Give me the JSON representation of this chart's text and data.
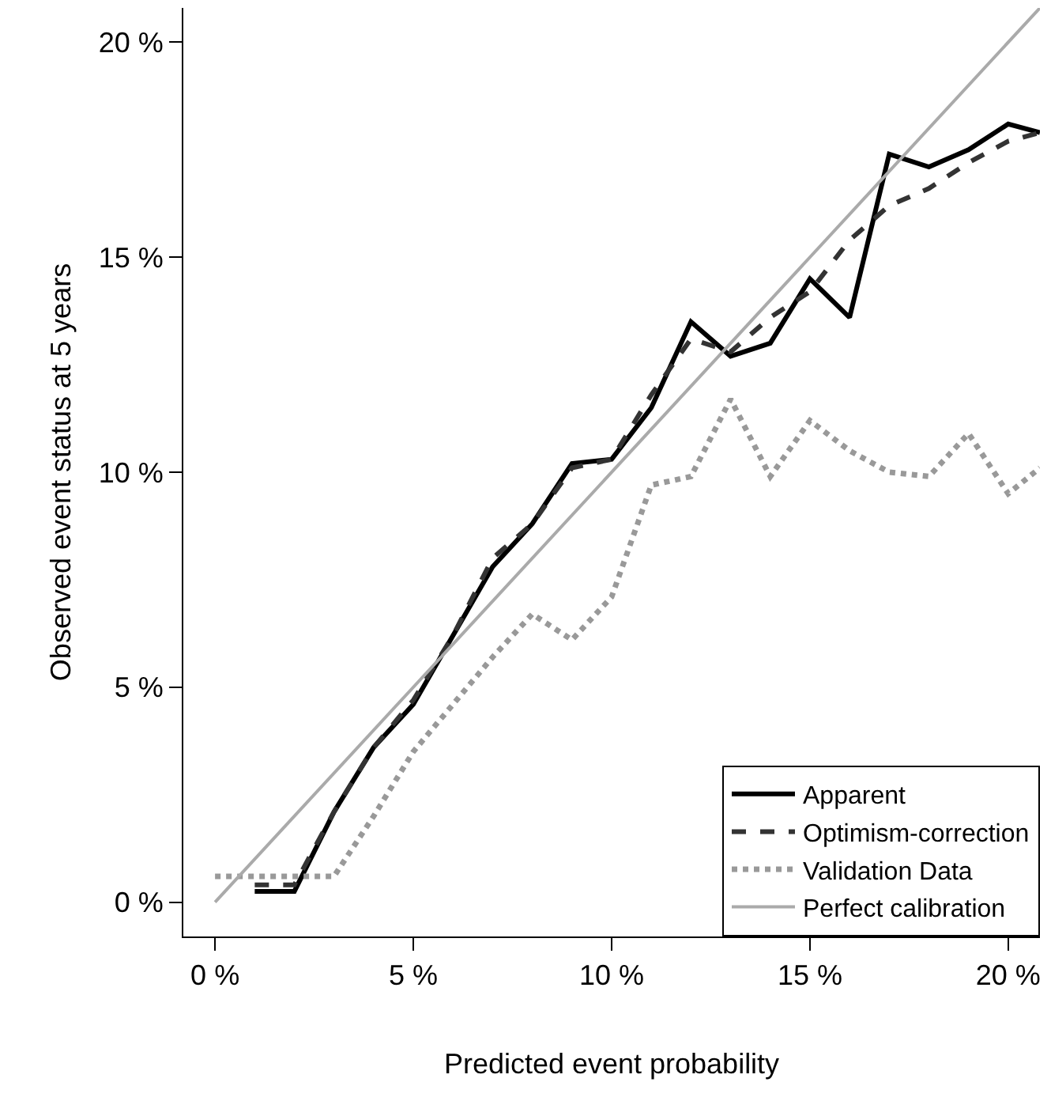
{
  "chart_data": {
    "type": "line",
    "xlabel": "Predicted event probability",
    "ylabel": "Observed event status at 5 years",
    "xlim": [
      -0.8,
      20.8
    ],
    "ylim": [
      -0.8,
      20.8
    ],
    "xticks": [
      {
        "value": 0,
        "label": "0 %"
      },
      {
        "value": 5,
        "label": "5 %"
      },
      {
        "value": 10,
        "label": "10 %"
      },
      {
        "value": 15,
        "label": "15 %"
      },
      {
        "value": 20,
        "label": "20 %"
      }
    ],
    "yticks": [
      {
        "value": 0,
        "label": "0 %"
      },
      {
        "value": 5,
        "label": "5 %"
      },
      {
        "value": 10,
        "label": "10 %"
      },
      {
        "value": 15,
        "label": "15 %"
      },
      {
        "value": 20,
        "label": "20 %"
      }
    ],
    "legend": "bottom right",
    "marker": "none",
    "series": [
      {
        "name": "Apparent",
        "color": "#000000",
        "line_style": "solid",
        "x": [
          1,
          2,
          3,
          4,
          5,
          6,
          7,
          8,
          9,
          10,
          11,
          12,
          13,
          14,
          15,
          16,
          17,
          18,
          19,
          20,
          20.8
        ],
        "values": [
          0.25,
          0.25,
          2.1,
          3.6,
          4.6,
          6.2,
          7.8,
          8.8,
          10.2,
          10.3,
          11.5,
          13.5,
          12.7,
          13.0,
          14.5,
          13.6,
          17.4,
          17.1,
          17.5,
          18.1,
          17.9
        ]
      },
      {
        "name": "Optimism-correction",
        "color": "#333333",
        "line_style": "dashed",
        "x": [
          1,
          2,
          3,
          4,
          5,
          6,
          7,
          8,
          9,
          10,
          11,
          12,
          13,
          14,
          15,
          16,
          17,
          18,
          19,
          20,
          20.8
        ],
        "values": [
          0.4,
          0.4,
          2.1,
          3.6,
          4.7,
          6.2,
          8.0,
          8.8,
          10.1,
          10.3,
          11.8,
          13.1,
          12.8,
          13.6,
          14.2,
          15.4,
          16.2,
          16.6,
          17.2,
          17.7,
          17.9
        ]
      },
      {
        "name": "Validation Data",
        "color": "#999999",
        "line_style": "dotted",
        "x": [
          0,
          1,
          2,
          3,
          4,
          5,
          6,
          7,
          8,
          9,
          10,
          11,
          12,
          13,
          14,
          15,
          16,
          17,
          18,
          19,
          20,
          20.8
        ],
        "values": [
          0.6,
          0.6,
          0.6,
          0.6,
          2.0,
          3.5,
          4.6,
          5.7,
          6.7,
          6.1,
          7.1,
          9.7,
          9.9,
          11.7,
          9.9,
          11.2,
          10.5,
          10.0,
          9.9,
          10.9,
          9.5,
          10.1
        ]
      },
      {
        "name": "Perfect calibration",
        "color": "#aaaaaa",
        "line_style": "solid",
        "x": [
          0,
          20.8
        ],
        "values": [
          0,
          20.8
        ]
      }
    ]
  }
}
